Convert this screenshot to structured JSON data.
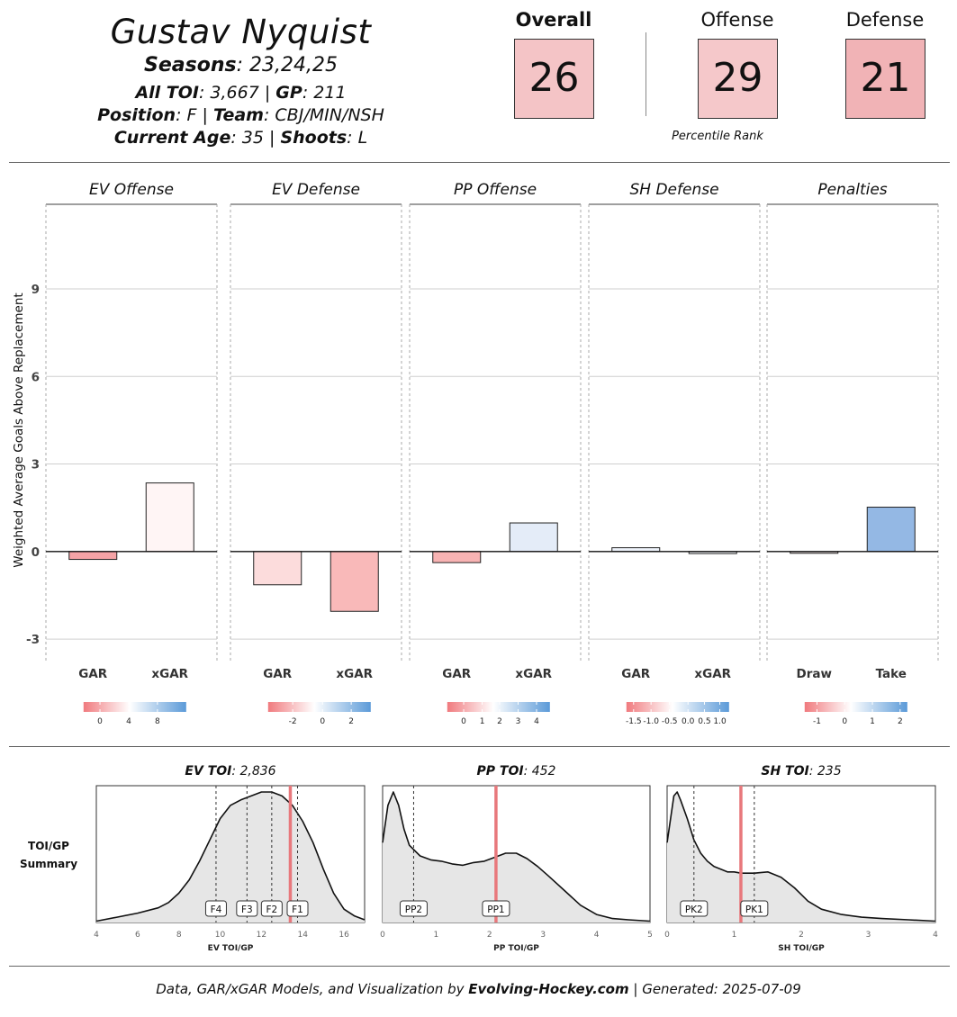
{
  "header": {
    "player_name": "Gustav Nyquist",
    "seasons_label": "Seasons",
    "seasons_value": ": 23,24,25",
    "toi_label": "All TOI",
    "toi_value": ": 3,667 | ",
    "gp_label": "GP",
    "gp_value": ": 211",
    "position_label": "Position",
    "position_value": ": F | ",
    "team_label": "Team",
    "team_value": ": CBJ/MIN/NSH",
    "age_label": "Current Age",
    "age_value": ": 35 | ",
    "shoots_label": "Shoots",
    "shoots_value": ": L"
  },
  "ranks": {
    "overall_label": "Overall",
    "overall_value": "26",
    "overall_color": "#f4c4c6",
    "offense_label": "Offense",
    "offense_value": "29",
    "offense_color": "#f5c8ca",
    "defense_label": "Defense",
    "defense_value": "21",
    "defense_color": "#f1b3b6",
    "caption": "Percentile Rank"
  },
  "chart_data": [
    {
      "type": "bar",
      "ylabel": "Weighted Average Goals Above Replacement",
      "ylim": [
        -3.8,
        11.9
      ],
      "yticks": [
        -3,
        0,
        3,
        6,
        9
      ],
      "panels": [
        {
          "title": "EV Offense",
          "categories": [
            "GAR",
            "xGAR"
          ],
          "values": [
            -0.27,
            2.35
          ],
          "colors": [
            "#f5a3a6",
            "#fff5f5"
          ],
          "legend_ticks": [
            "0",
            "4",
            "8"
          ],
          "legend_tick_pos": [
            0.16,
            0.44,
            0.72
          ]
        },
        {
          "title": "EV Defense",
          "categories": [
            "GAR",
            "xGAR"
          ],
          "values": [
            -1.14,
            -2.05
          ],
          "colors": [
            "#fcdcdc",
            "#f9b9b9"
          ],
          "legend_ticks": [
            "-2",
            "0",
            "2"
          ],
          "legend_tick_pos": [
            0.24,
            0.53,
            0.81
          ]
        },
        {
          "title": "PP Offense",
          "categories": [
            "GAR",
            "xGAR"
          ],
          "values": [
            -0.38,
            0.98
          ],
          "colors": [
            "#f8b3b3",
            "#e4ecf8"
          ],
          "legend_ticks": [
            "0",
            "1",
            "2",
            "3",
            "4"
          ],
          "legend_tick_pos": [
            0.16,
            0.34,
            0.51,
            0.69,
            0.87
          ]
        },
        {
          "title": "SH Defense",
          "categories": [
            "GAR",
            "xGAR"
          ],
          "values": [
            0.13,
            -0.07
          ],
          "colors": [
            "#eef3fb",
            "#f5f7fc"
          ],
          "legend_ticks": [
            "-1.5",
            "-1.0",
            "-0.5",
            "0.0",
            "0.5",
            "1.0"
          ],
          "legend_tick_pos": [
            0.07,
            0.24,
            0.42,
            0.6,
            0.76,
            0.91
          ]
        },
        {
          "title": "Penalties",
          "categories": [
            "Draw",
            "Take"
          ],
          "values": [
            -0.06,
            1.52
          ],
          "colors": [
            "#fbeeee",
            "#94b8e4"
          ],
          "legend_ticks": [
            "-1",
            "0",
            "1",
            "2"
          ],
          "legend_tick_pos": [
            0.12,
            0.39,
            0.66,
            0.93
          ]
        }
      ]
    },
    {
      "type": "area",
      "side_label": "TOI/GP Summary",
      "plots": [
        {
          "title_label": "EV TOI",
          "title_value": ": 2,836",
          "xlabel": "EV TOI/GP",
          "xlim": [
            4,
            17
          ],
          "xticks": [
            4,
            6,
            8,
            10,
            12,
            14,
            16
          ],
          "player_value": 13.4,
          "markers": [
            {
              "label": "F4",
              "x": 9.8
            },
            {
              "label": "F3",
              "x": 11.3
            },
            {
              "label": "F2",
              "x": 12.5
            },
            {
              "label": "F1",
              "x": 13.75
            }
          ],
          "x": [
            4,
            5,
            6,
            7,
            7.5,
            8,
            8.5,
            9,
            9.5,
            10,
            10.5,
            11,
            11.5,
            12,
            12.5,
            13,
            13.5,
            14,
            14.5,
            15,
            15.5,
            16,
            16.5,
            17
          ],
          "y": [
            0.01,
            0.04,
            0.07,
            0.11,
            0.15,
            0.22,
            0.32,
            0.46,
            0.62,
            0.78,
            0.88,
            0.92,
            0.95,
            0.98,
            0.98,
            0.95,
            0.88,
            0.76,
            0.6,
            0.4,
            0.22,
            0.1,
            0.05,
            0.02
          ]
        },
        {
          "title_label": "PP TOI",
          "title_value": ": 452",
          "xlabel": "PP TOI/GP",
          "xlim": [
            0,
            5
          ],
          "xticks": [
            0,
            1,
            2,
            3,
            4,
            5
          ],
          "player_value": 2.12,
          "markers": [
            {
              "label": "PP2",
              "x": 0.58
            },
            {
              "label": "PP1",
              "x": 2.12
            }
          ],
          "x": [
            0,
            0.1,
            0.2,
            0.3,
            0.4,
            0.5,
            0.7,
            0.9,
            1.1,
            1.3,
            1.5,
            1.7,
            1.9,
            2.1,
            2.3,
            2.5,
            2.7,
            2.9,
            3.1,
            3.4,
            3.7,
            4.0,
            4.3,
            4.6,
            5.0
          ],
          "y": [
            0.6,
            0.88,
            0.98,
            0.88,
            0.7,
            0.58,
            0.5,
            0.47,
            0.46,
            0.44,
            0.43,
            0.45,
            0.46,
            0.49,
            0.52,
            0.52,
            0.48,
            0.42,
            0.35,
            0.24,
            0.13,
            0.06,
            0.03,
            0.02,
            0.01
          ]
        },
        {
          "title_label": "SH TOI",
          "title_value": ": 235",
          "xlabel": "SH TOI/GP",
          "xlim": [
            0,
            4
          ],
          "xticks": [
            0,
            1,
            2,
            3,
            4
          ],
          "player_value": 1.1,
          "markers": [
            {
              "label": "PK2",
              "x": 0.4
            },
            {
              "label": "PK1",
              "x": 1.3
            }
          ],
          "x": [
            0,
            0.1,
            0.15,
            0.2,
            0.3,
            0.4,
            0.5,
            0.6,
            0.7,
            0.8,
            0.9,
            1.0,
            1.1,
            1.3,
            1.5,
            1.7,
            1.9,
            2.1,
            2.3,
            2.6,
            2.9,
            3.2,
            3.6,
            4.0
          ],
          "y": [
            0.6,
            0.95,
            0.98,
            0.92,
            0.78,
            0.62,
            0.52,
            0.46,
            0.42,
            0.4,
            0.38,
            0.38,
            0.37,
            0.37,
            0.38,
            0.34,
            0.26,
            0.16,
            0.1,
            0.06,
            0.04,
            0.03,
            0.02,
            0.01
          ]
        }
      ]
    }
  ],
  "footer": {
    "prefix": "Data, GAR/xGAR Models, and Visualization by ",
    "brand": "Evolving-Hockey.com",
    "suffix": " | Generated: 2025-07-09"
  }
}
